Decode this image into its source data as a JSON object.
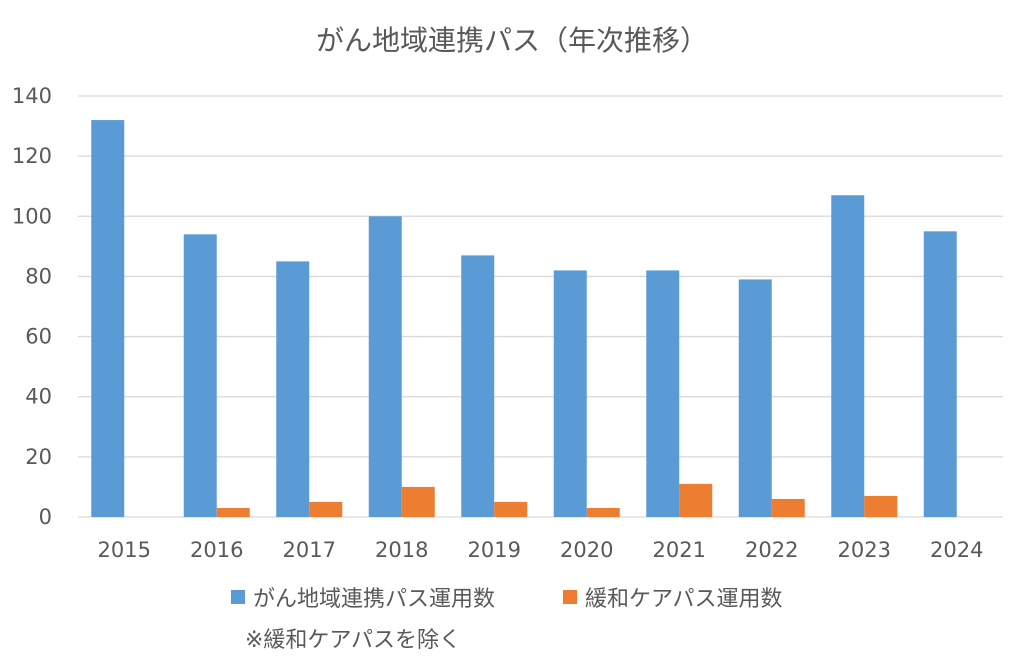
{
  "chart_data": {
    "type": "bar",
    "title": "がん地域連携パス（年次推移）",
    "xlabel": "",
    "ylabel": "",
    "categories": [
      "2015",
      "2016",
      "2017",
      "2018",
      "2019",
      "2020",
      "2021",
      "2022",
      "2023",
      "2024"
    ],
    "ylim": [
      0,
      140
    ],
    "yticks": [
      0,
      20,
      40,
      60,
      80,
      100,
      120,
      140
    ],
    "grid": true,
    "legend_position": "bottom",
    "series": [
      {
        "name": "がん地域連携パス運用数",
        "color": "#5b9bd5",
        "values": [
          132,
          94,
          85,
          100,
          87,
          82,
          82,
          79,
          107,
          95
        ]
      },
      {
        "name": "緩和ケアパス運用数",
        "color": "#ed7d31",
        "values": [
          0,
          3,
          5,
          10,
          5,
          3,
          11,
          6,
          7,
          0
        ]
      }
    ],
    "annotation": "※緩和ケアパスを除く"
  }
}
